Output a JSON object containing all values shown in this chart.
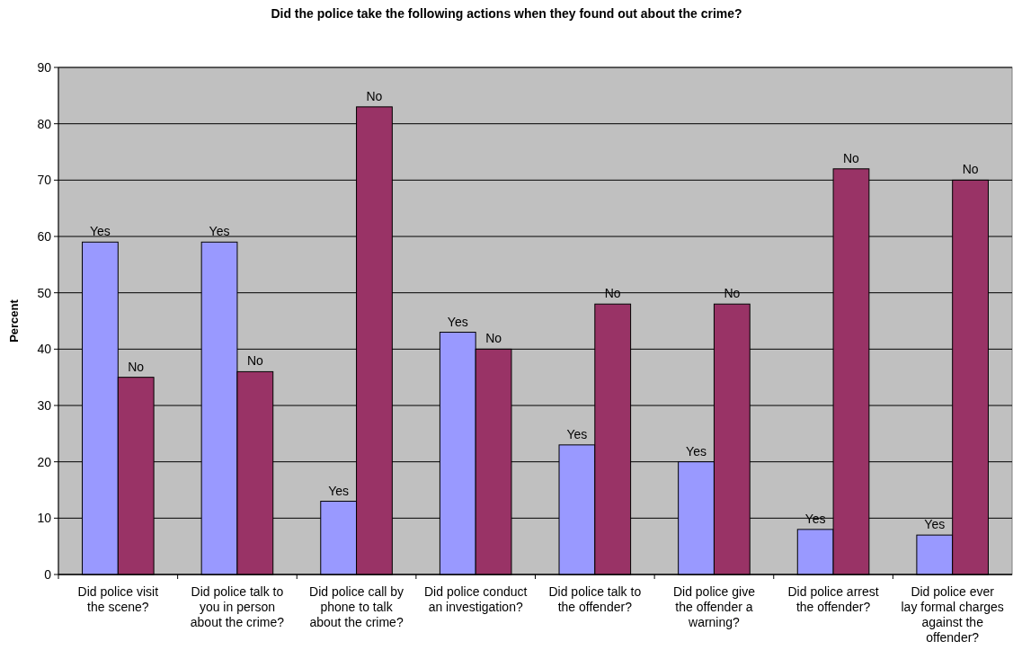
{
  "chart_data": {
    "type": "bar",
    "title": "Did the police take the following actions when they found out about the crime?",
    "ylabel": "Percent",
    "categories": [
      "Did police visit the scene?",
      "Did police talk to you in person about the crime?",
      "Did police call by phone to talk about the crime?",
      "Did police conduct an investigation?",
      "Did police talk to the offender?",
      "Did police give the offender a warning?",
      "Did police arrest the offender?",
      "Did police ever lay formal charges against the offender?"
    ],
    "series": [
      {
        "name": "Yes",
        "color": "#9999ff",
        "values": [
          59,
          59,
          13,
          43,
          23,
          20,
          8,
          7
        ]
      },
      {
        "name": "No",
        "color": "#993366",
        "values": [
          35,
          36,
          83,
          40,
          48,
          48,
          72,
          70
        ]
      }
    ],
    "ylim": [
      0,
      90
    ],
    "yticks": [
      0,
      10,
      20,
      30,
      40,
      50,
      60,
      70,
      80,
      90
    ],
    "grid": "y",
    "legend": false
  }
}
